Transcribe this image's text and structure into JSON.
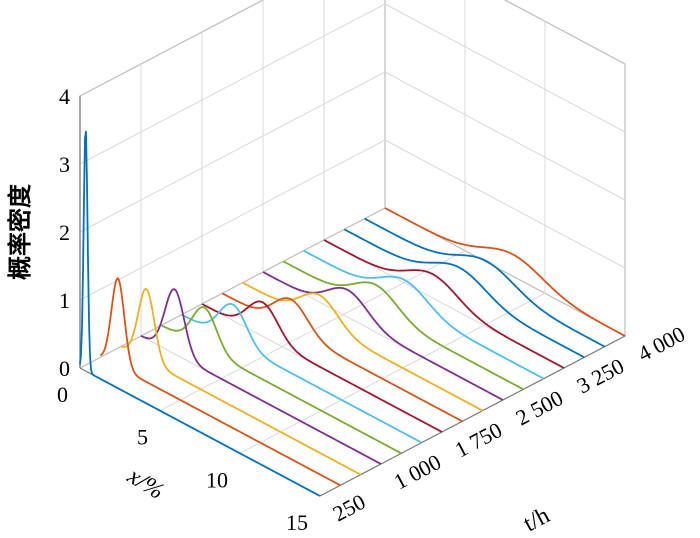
{
  "chart_data": {
    "type": "line",
    "subtype": "3d-waterfall",
    "ylabel": "概率密度",
    "xlabel": "x/%",
    "tlabel": "t/h",
    "ylim": [
      0,
      4
    ],
    "xlim": [
      0,
      15
    ],
    "tlim": [
      250,
      4000
    ],
    "y_ticks": [
      "0",
      "1",
      "2",
      "3",
      "4"
    ],
    "x_ticks": [
      {
        "value": 0,
        "label": "0"
      },
      {
        "value": 5,
        "label": "5"
      },
      {
        "value": 10,
        "label": "10"
      },
      {
        "value": 15,
        "label": "15"
      }
    ],
    "t_ticks": [
      {
        "value": 250,
        "label": "250"
      },
      {
        "value": 1000,
        "label": "1 000"
      },
      {
        "value": 1750,
        "label": "1 750"
      },
      {
        "value": 2500,
        "label": "2 500"
      },
      {
        "value": 3250,
        "label": "3 250"
      },
      {
        "value": 4000,
        "label": "4 000"
      }
    ],
    "grid": true,
    "series": [
      {
        "t": 250,
        "color": "#0072BD",
        "peaks": [
          [
            0.35,
            3.6,
            0.12
          ]
        ]
      },
      {
        "t": 500,
        "color": "#D95319",
        "peaks": [
          [
            1.1,
            1.3,
            0.4
          ]
        ]
      },
      {
        "t": 750,
        "color": "#EDB120",
        "peaks": [
          [
            1.6,
            1.05,
            0.5
          ]
        ]
      },
      {
        "t": 1000,
        "color": "#7E2F8E",
        "peaks": [
          [
            2.1,
            0.95,
            0.6
          ]
        ]
      },
      {
        "t": 1250,
        "color": "#77AC30",
        "peaks": [
          [
            2.7,
            0.6,
            0.75
          ]
        ]
      },
      {
        "t": 1500,
        "color": "#4DBEEE",
        "peaks": [
          [
            3.2,
            0.55,
            0.85
          ]
        ]
      },
      {
        "t": 1750,
        "color": "#A2142F",
        "peaks": [
          [
            3.8,
            0.5,
            0.95
          ]
        ]
      },
      {
        "t": 2000,
        "color": "#D95319",
        "peaks": [
          [
            4.3,
            0.45,
            1.05
          ]
        ]
      },
      {
        "t": 2250,
        "color": "#EDB120",
        "peaks": [
          [
            4.8,
            0.42,
            1.15
          ]
        ]
      },
      {
        "t": 2500,
        "color": "#7E2F8E",
        "peaks": [
          [
            5.3,
            0.4,
            1.25
          ]
        ]
      },
      {
        "t": 2750,
        "color": "#77AC30",
        "peaks": [
          [
            5.8,
            0.38,
            1.35
          ]
        ]
      },
      {
        "t": 3000,
        "color": "#4DBEEE",
        "peaks": [
          [
            6.3,
            0.36,
            1.45
          ]
        ]
      },
      {
        "t": 3250,
        "color": "#A2142F",
        "peaks": [
          [
            6.8,
            0.35,
            1.55
          ]
        ]
      },
      {
        "t": 3500,
        "color": "#0072BD",
        "peaks": [
          [
            7.2,
            0.34,
            1.65
          ]
        ]
      },
      {
        "t": 3750,
        "color": "#0072BD",
        "peaks": [
          [
            7.6,
            0.33,
            1.75
          ]
        ]
      },
      {
        "t": 4000,
        "color": "#D95319",
        "peaks": [
          [
            8.0,
            0.32,
            1.85
          ]
        ]
      }
    ]
  }
}
